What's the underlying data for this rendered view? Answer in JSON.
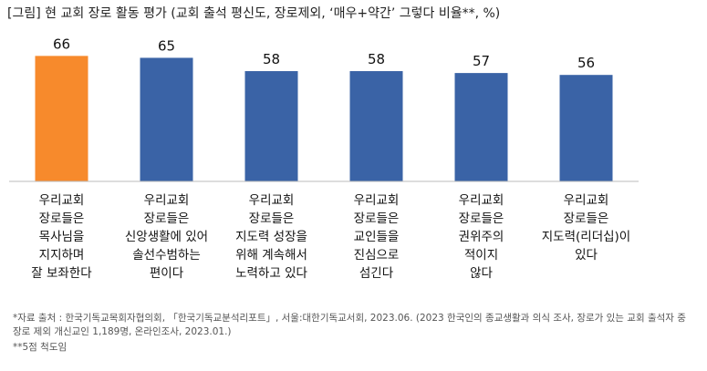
{
  "chart_data": {
    "type": "bar",
    "title": "[그림] 현 교회 장로 활동 평가 (교회 출석 평신도, 장로제외, ‘매우+약간’ 그렇다 비율**, %)",
    "categories": [
      "우리교회\n장로들은\n목사님을\n지지하며\n잘 보좌한다",
      "우리교회\n장로들은\n신앙생활에 있어\n솔선수범하는\n편이다",
      "우리교회\n장로들은\n지도력 성장을\n위해 계속해서\n노력하고 있다",
      "우리교회\n장로들은\n교인들을\n진심으로\n섬긴다",
      "우리교회\n장로들은\n권위주의\n적이지\n않다",
      "우리교회\n장로들은\n지도력(리더십)이\n있다"
    ],
    "values": [
      66,
      65,
      58,
      58,
      57,
      56
    ],
    "colors": [
      "#f78a2c",
      "#3a63a6",
      "#3a63a6",
      "#3a63a6",
      "#3a63a6",
      "#3a63a6"
    ],
    "ylim": [
      0,
      70
    ],
    "notes": [
      "*자료 출처 : 한국기독교목회자협의회, 「한국기독교분석리포트」, 서울:대한기독교서회, 2023.06. (2023 한국인의 종교생활과 의식 조사, 장로가 있는 교회 출석자 중 장로 제외 개신교인 1,189명, 온라인조사, 2023.01.)",
      "**5점 척도임"
    ]
  }
}
